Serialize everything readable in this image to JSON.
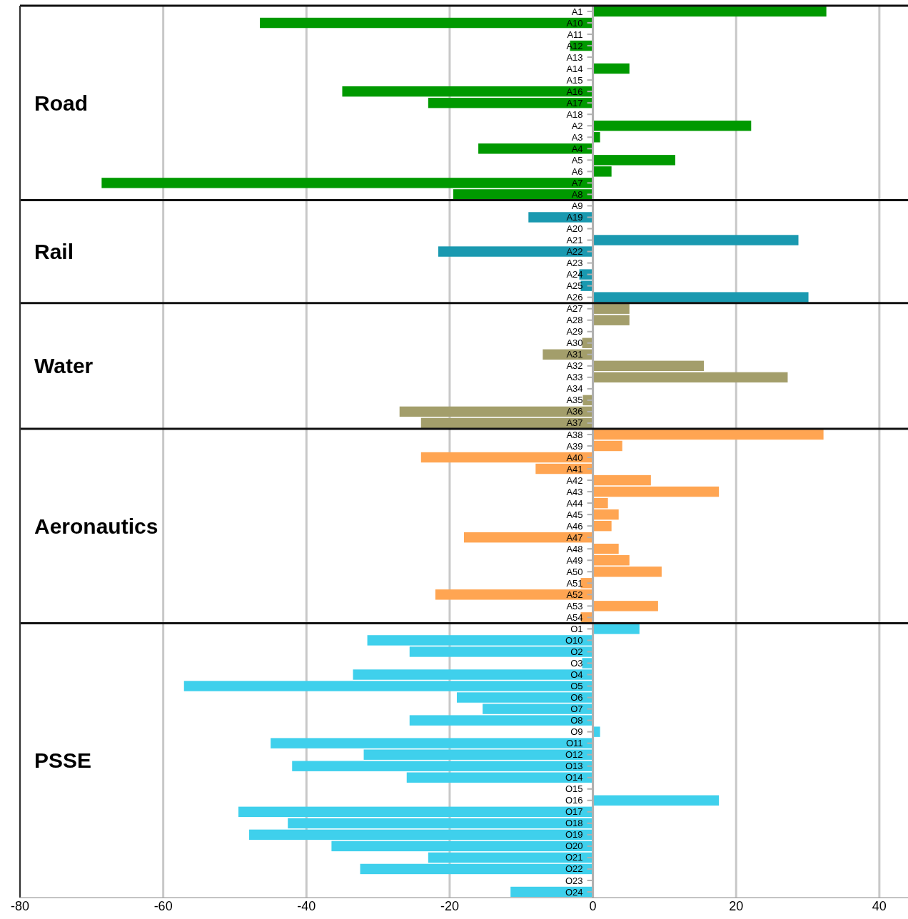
{
  "chart_data": {
    "type": "bar",
    "orientation": "horizontal",
    "categories": [
      "A1",
      "A10",
      "A11",
      "A12",
      "A13",
      "A14",
      "A15",
      "A16",
      "A17",
      "A18",
      "A2",
      "A3",
      "A4",
      "A5",
      "A6",
      "A7",
      "A8",
      "A9",
      "A19",
      "A20",
      "A21",
      "A22",
      "A23",
      "A24",
      "A25",
      "A26",
      "A27",
      "A28",
      "A29",
      "A30",
      "A31",
      "A32",
      "A33",
      "A34",
      "A35",
      "A36",
      "A37",
      "A38",
      "A39",
      "A40",
      "A41",
      "A42",
      "A43",
      "A44",
      "A45",
      "A46",
      "A47",
      "A48",
      "A49",
      "A50",
      "A51",
      "A52",
      "A53",
      "A54",
      "O1",
      "O10",
      "O2",
      "O3",
      "O4",
      "O5",
      "O6",
      "O7",
      "O8",
      "O9",
      "O11",
      "O12",
      "O13",
      "O14",
      "O15",
      "O16",
      "O17",
      "O18",
      "O19",
      "O20",
      "O21",
      "O22",
      "O23",
      "O24"
    ],
    "series": [
      {
        "color": "#009900",
        "values": [
          32.6,
          -46.5,
          0,
          -3.2,
          0,
          5.1,
          0,
          -35,
          -23,
          0,
          22.1,
          1,
          -16,
          11.5,
          2.6,
          -68.6,
          -19.5,
          null,
          null,
          null,
          null,
          null,
          null,
          null,
          null,
          null,
          null,
          null,
          null,
          null,
          null,
          null,
          null,
          null,
          null,
          null,
          null,
          null,
          null,
          null,
          null,
          null,
          null,
          null,
          null,
          null,
          null,
          null,
          null,
          null,
          null,
          null,
          null,
          null,
          null,
          null,
          null,
          null,
          null,
          null,
          null,
          null,
          null,
          null,
          null,
          null,
          null,
          null,
          null,
          null,
          null,
          null,
          null,
          null,
          null,
          null,
          null,
          null
        ]
      },
      {
        "color": "#1a99b0",
        "values": [
          null,
          null,
          null,
          null,
          null,
          null,
          null,
          null,
          null,
          null,
          null,
          null,
          null,
          null,
          null,
          null,
          null,
          0,
          -9,
          0,
          28.7,
          -21.6,
          0,
          -1.9,
          -1.7,
          30.1,
          null,
          null,
          null,
          null,
          null,
          null,
          null,
          null,
          null,
          null,
          null,
          null,
          null,
          null,
          null,
          null,
          null,
          null,
          null,
          null,
          null,
          null,
          null,
          null,
          null,
          null,
          null,
          null,
          null,
          null,
          null,
          null,
          null,
          null,
          null,
          null,
          null,
          null,
          null,
          null,
          null,
          null,
          null,
          null,
          null,
          null,
          null,
          null,
          null,
          null,
          null,
          null
        ]
      },
      {
        "color": "#a39e6b",
        "values": [
          null,
          null,
          null,
          null,
          null,
          null,
          null,
          null,
          null,
          null,
          null,
          null,
          null,
          null,
          null,
          null,
          null,
          null,
          null,
          null,
          null,
          null,
          null,
          null,
          null,
          null,
          5.1,
          5.1,
          0,
          -1.5,
          -7,
          15.5,
          27.2,
          0,
          -1.4,
          -27,
          -24,
          null,
          null,
          null,
          null,
          null,
          null,
          null,
          null,
          null,
          null,
          null,
          null,
          null,
          null,
          null,
          null,
          null,
          null,
          null,
          null,
          null,
          null,
          null,
          null,
          null,
          null,
          null,
          null,
          null,
          null,
          null,
          null,
          null,
          null,
          null,
          null,
          null,
          null,
          null,
          null,
          null
        ]
      },
      {
        "color": "#ffa552",
        "values": [
          null,
          null,
          null,
          null,
          null,
          null,
          null,
          null,
          null,
          null,
          null,
          null,
          null,
          null,
          null,
          null,
          null,
          null,
          null,
          null,
          null,
          null,
          null,
          null,
          null,
          null,
          null,
          null,
          null,
          null,
          null,
          null,
          null,
          null,
          null,
          null,
          null,
          32.2,
          4.1,
          -24,
          -8,
          8.1,
          17.6,
          2.1,
          3.6,
          2.6,
          -18,
          3.6,
          5.1,
          9.6,
          -1.7,
          -22,
          9.1,
          -1.7,
          null,
          null,
          null,
          null,
          null,
          null,
          null,
          null,
          null,
          null,
          null,
          null,
          null,
          null,
          null,
          null,
          null,
          null,
          null,
          null,
          null,
          null,
          null,
          null
        ]
      },
      {
        "color": "#3fd0ec",
        "values": [
          null,
          null,
          null,
          null,
          null,
          null,
          null,
          null,
          null,
          null,
          null,
          null,
          null,
          null,
          null,
          null,
          null,
          null,
          null,
          null,
          null,
          null,
          null,
          null,
          null,
          null,
          null,
          null,
          null,
          null,
          null,
          null,
          null,
          null,
          null,
          null,
          null,
          null,
          null,
          null,
          null,
          null,
          null,
          null,
          null,
          null,
          null,
          null,
          null,
          null,
          null,
          null,
          null,
          null,
          6.5,
          -31.5,
          -25.6,
          -1.5,
          -33.5,
          -57.1,
          -19,
          -15.4,
          -25.6,
          1,
          -45,
          -32,
          -42,
          -26,
          0,
          17.6,
          -49.5,
          -42.6,
          -48,
          -36.5,
          -23,
          -32.5,
          0,
          -11.5
        ]
      }
    ],
    "annotations": [
      "Road",
      "Rail",
      "Water",
      "Aeronautics",
      "PSSE"
    ],
    "xlim": [
      -80,
      44
    ],
    "xticks": [
      -80,
      -60,
      -40,
      -20,
      0,
      20,
      40
    ],
    "grid": "x"
  }
}
